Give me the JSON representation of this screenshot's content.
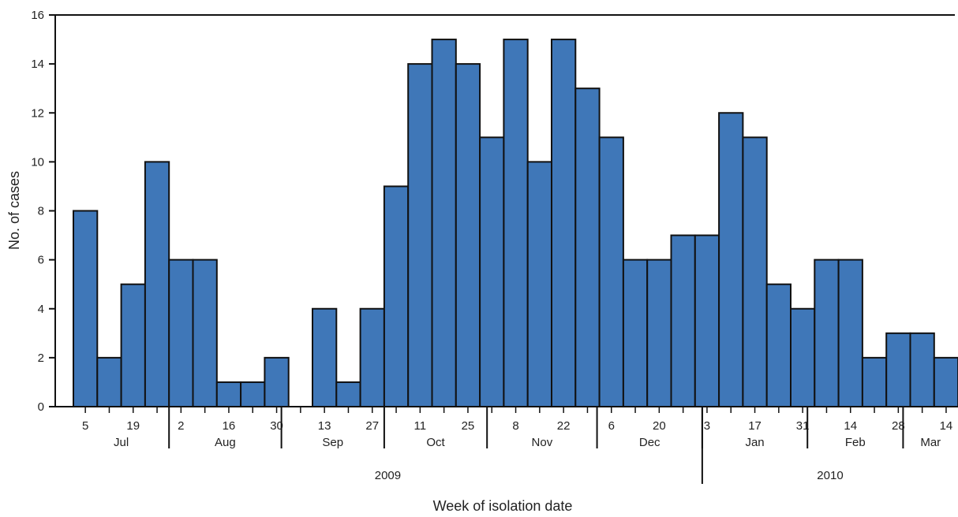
{
  "chart_data": {
    "type": "bar",
    "title": "",
    "xlabel": "Week of isolation date",
    "ylabel": "No. of cases",
    "ylim": [
      0,
      16
    ],
    "yticks": [
      "0",
      "2",
      "4",
      "6",
      "8",
      "10",
      "12",
      "14",
      "16"
    ],
    "grid": false,
    "legend": "none",
    "bar_color": "#3f77b8",
    "values": [
      8,
      2,
      5,
      10,
      6,
      6,
      1,
      1,
      2,
      0,
      4,
      1,
      4,
      9,
      14,
      15,
      14,
      11,
      15,
      10,
      15,
      13,
      11,
      6,
      6,
      7,
      7,
      12,
      11,
      5,
      4,
      6,
      6,
      2,
      3,
      3,
      2
    ],
    "week_labels": [
      {
        "index": 0,
        "text": "5"
      },
      {
        "index": 2,
        "text": "19"
      },
      {
        "index": 4,
        "text": "2"
      },
      {
        "index": 6,
        "text": "16"
      },
      {
        "index": 8,
        "text": "30"
      },
      {
        "index": 10,
        "text": "13"
      },
      {
        "index": 12,
        "text": "27"
      },
      {
        "index": 14,
        "text": "11"
      },
      {
        "index": 16,
        "text": "25"
      },
      {
        "index": 18,
        "text": "8"
      },
      {
        "index": 20,
        "text": "22"
      },
      {
        "index": 22,
        "text": "6"
      },
      {
        "index": 24,
        "text": "20"
      },
      {
        "index": 26,
        "text": "3"
      },
      {
        "index": 28,
        "text": "17"
      },
      {
        "index": 30,
        "text": "31"
      },
      {
        "index": 32,
        "text": "14"
      },
      {
        "index": 34,
        "text": "28"
      },
      {
        "index": 36,
        "text": "14"
      }
    ],
    "months": [
      {
        "name": "Jul",
        "start": 0,
        "end": 4
      },
      {
        "name": "Aug",
        "start": 4,
        "end": 8.7
      },
      {
        "name": "Sep",
        "start": 8.7,
        "end": 13
      },
      {
        "name": "Oct",
        "start": 13,
        "end": 17.3
      },
      {
        "name": "Nov",
        "start": 17.3,
        "end": 21.9
      },
      {
        "name": "Dec",
        "start": 21.9,
        "end": 26.3
      },
      {
        "name": "Jan",
        "start": 26.3,
        "end": 30.7
      },
      {
        "name": "Feb",
        "start": 30.7,
        "end": 34.7
      },
      {
        "name": "Mar",
        "start": 34.7,
        "end": 37
      }
    ],
    "years": [
      {
        "name": "2009",
        "start": 0,
        "end": 26.3
      },
      {
        "name": "2010",
        "start": 26.3,
        "end": 37
      }
    ]
  }
}
